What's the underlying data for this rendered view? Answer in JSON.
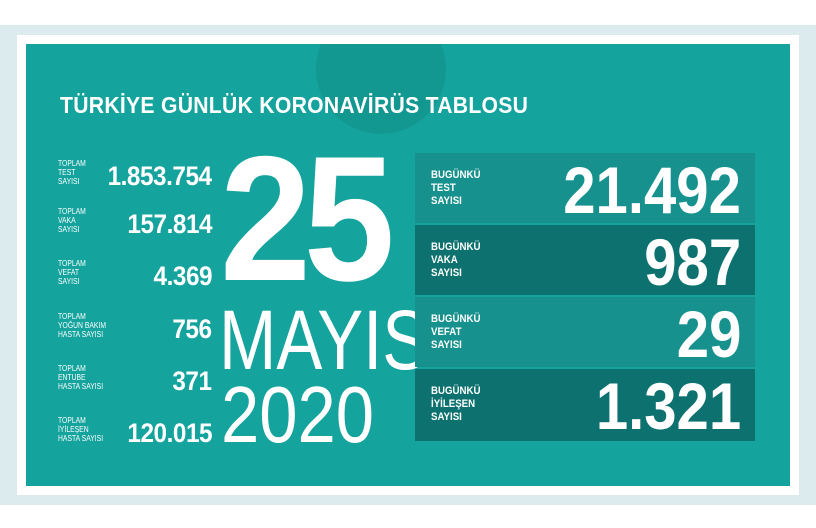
{
  "title": "TÜRKİYE GÜNLÜK KORONAVİRÜS TABLOSU",
  "colors": {
    "panel": "#14a39d",
    "row_light": "#17918d",
    "row_dark": "#0d726f",
    "text": "#ffffff"
  },
  "totals": [
    {
      "label": "TOPLAM\nTEST\nSAYISI",
      "value": "1.853.754"
    },
    {
      "label": "TOPLAM\nVAKA\nSAYISI",
      "value": "157.814"
    },
    {
      "label": "TOPLAM\nVEFAT\nSAYISI",
      "value": "4.369"
    },
    {
      "label": "TOPLAM\nYOĞUN BAKIM\nHASTA SAYISI",
      "value": "756"
    },
    {
      "label": "TOPLAM\nENTUBE\nHASTA SAYISI",
      "value": "371"
    },
    {
      "label": "TOPLAM\nİYİLEŞEN\nHASTA SAYISI",
      "value": "120.015"
    }
  ],
  "date": {
    "day": "25",
    "month": "MAYIS",
    "year": "2020"
  },
  "today": [
    {
      "label": "BUGÜNKÜ\nTEST\nSAYISI",
      "value": "21.492"
    },
    {
      "label": "BUGÜNKÜ\nVAKA\nSAYISI",
      "value": "987"
    },
    {
      "label": "BUGÜNKÜ\nVEFAT\nSAYISI",
      "value": "29"
    },
    {
      "label": "BUGÜNKÜ\nİYİLEŞEN\nSAYISI",
      "value": "1.321"
    }
  ]
}
